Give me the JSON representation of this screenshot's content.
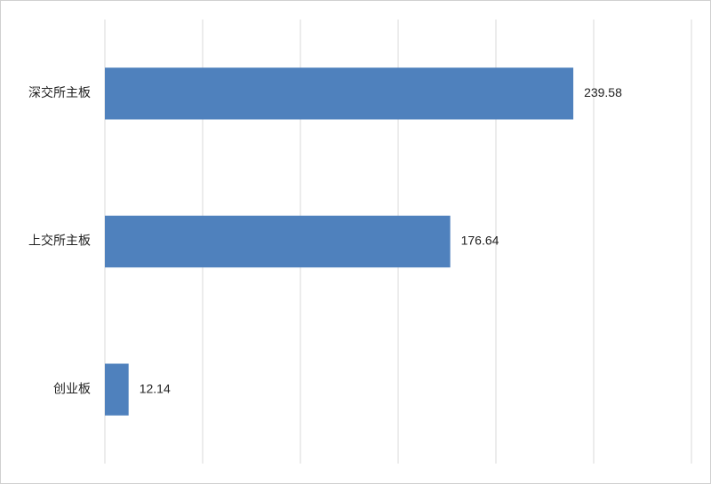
{
  "chart_data": {
    "type": "bar",
    "orientation": "horizontal",
    "categories": [
      "深交所主板",
      "上交所主板",
      "创业板"
    ],
    "values": [
      239.58,
      176.64,
      12.14
    ],
    "color": "#4f81bd",
    "xlim": [
      0,
      300
    ],
    "xticks": [
      0,
      50,
      100,
      150,
      200,
      250,
      300
    ],
    "grid": true
  }
}
